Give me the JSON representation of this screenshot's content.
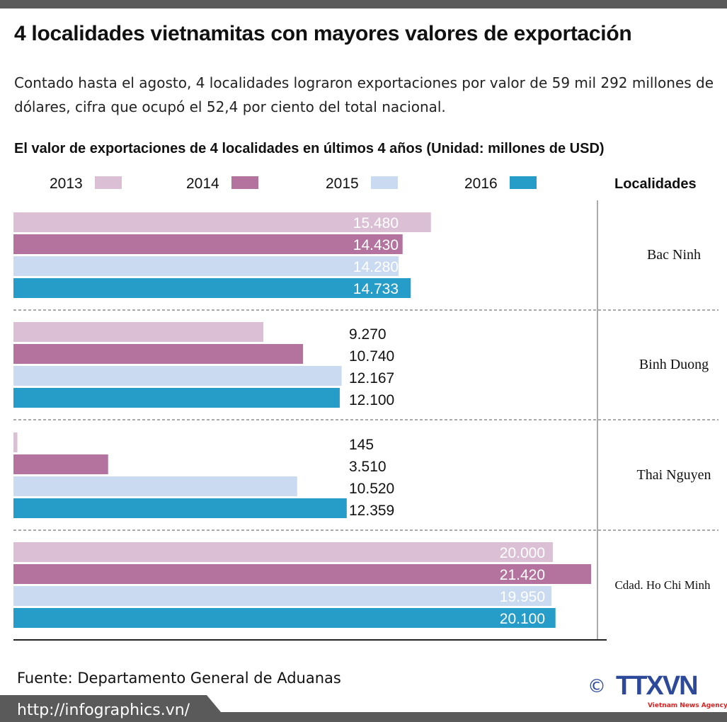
{
  "title": "4 localidades vietnamitas con mayores valores de exportación",
  "subtitle": "Contado hasta el agosto, 4 localidades lograron exportaciones por valor de 59 mil 292 millones de dólares, cifra que ocupó el 52,4 por ciento del total nacional.",
  "source": "Fuente: Departamento General de Aduanas",
  "url": "http://infographics.vn/",
  "logo": {
    "text": "TTXVN",
    "tagline": "Vietnam News Agency",
    "copyright": "©"
  },
  "chart_data": {
    "type": "bar",
    "orientation": "horizontal",
    "title": "El valor de exportaciones de 4 localidades en últimos 4 años (Unidad: millones de USD)",
    "category_header": "Localidades",
    "categories": [
      "Bac Ninh",
      "Binh Duong",
      "Thai Nguyen",
      "Cdad. Ho Chi Minh"
    ],
    "legend_position": "top",
    "grid": false,
    "series": [
      {
        "name": "2013",
        "color": "#dbc0d5",
        "values": [
          15480,
          9270,
          145,
          20000
        ],
        "labels": [
          "15.480",
          "9.270",
          "145",
          "20.000"
        ]
      },
      {
        "name": "2014",
        "color": "#b3739e",
        "values": [
          14430,
          10740,
          3510,
          21420
        ],
        "labels": [
          "14.430",
          "10.740",
          "3.510",
          "21.420"
        ]
      },
      {
        "name": "2015",
        "color": "#c9daf1",
        "values": [
          14280,
          12167,
          10520,
          19950
        ],
        "labels": [
          "14.280",
          "12.167",
          "10.520",
          "19.950"
        ]
      },
      {
        "name": "2016",
        "color": "#259dc8",
        "values": [
          14733,
          12100,
          12359,
          20100
        ],
        "labels": [
          "14.733",
          "12.100",
          "12.359",
          "20.100"
        ]
      }
    ],
    "xlim": [
      0,
      21420
    ]
  }
}
